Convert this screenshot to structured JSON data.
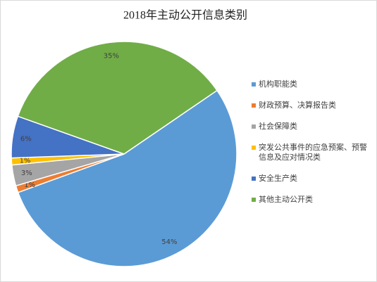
{
  "chart_data": {
    "type": "pie",
    "title": "2018年主动公开信息类别",
    "categories": [
      "机构职能类",
      "财政预算、决算报告类",
      "社会保障类",
      "突发公共事件的应急预案、预警信息及应对情况类",
      "安全生产类",
      "其他主动公开类"
    ],
    "values": [
      54,
      1,
      3,
      1,
      6,
      35
    ],
    "value_labels": [
      "54%",
      "1%",
      "3%",
      "1%",
      "6%",
      "35%"
    ],
    "colors": [
      "#5b9bd5",
      "#ed7d31",
      "#a5a5a5",
      "#ffc000",
      "#4472c4",
      "#70ad47"
    ],
    "legend": "right"
  }
}
